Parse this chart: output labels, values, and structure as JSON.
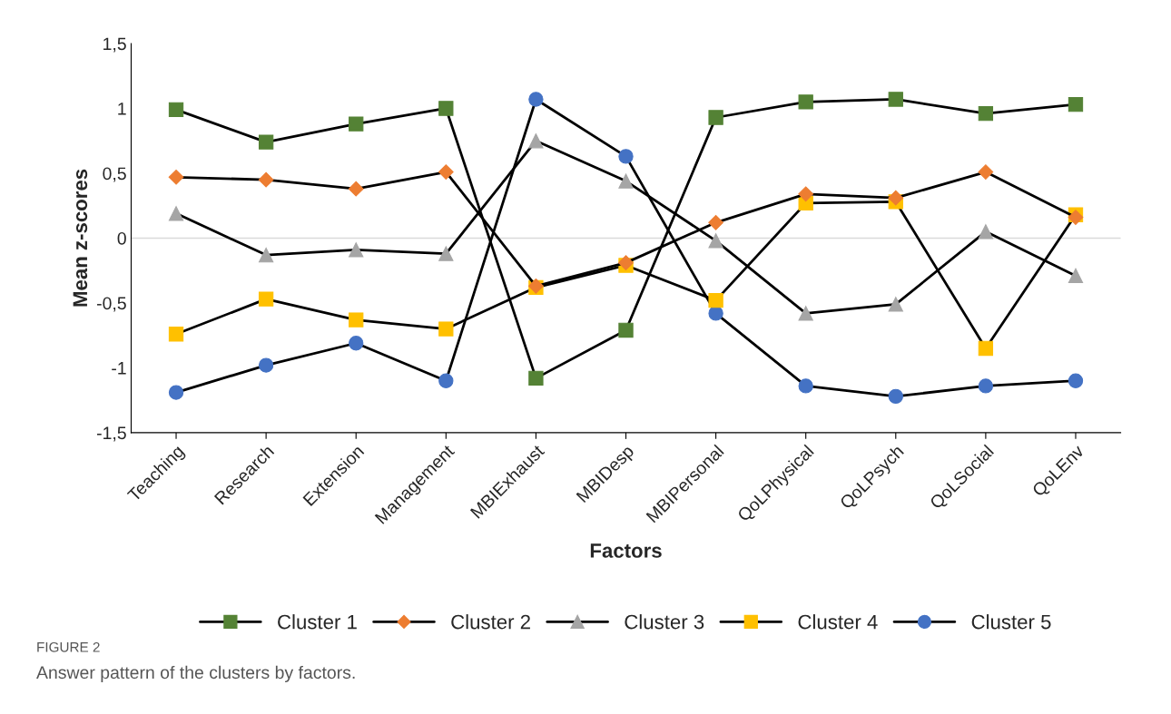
{
  "chart_data": {
    "type": "line",
    "xlabel": "Factors",
    "ylabel": "Mean z-scores",
    "categories": [
      "Teaching",
      "Research",
      "Extension",
      "Management",
      "MBIExhaust",
      "MBIDesp",
      "MBIPersonal",
      "QoLPhysical",
      "QoLPsych",
      "QoLSocial",
      "QoLEnv"
    ],
    "series": [
      {
        "name": "Cluster 1",
        "color": "#548235",
        "marker": "square",
        "values": [
          0.99,
          0.74,
          0.88,
          1.0,
          -1.08,
          -0.71,
          0.93,
          1.05,
          1.07,
          0.96,
          1.03
        ]
      },
      {
        "name": "Cluster 2",
        "color": "#ed7d31",
        "marker": "diamond",
        "values": [
          0.47,
          0.45,
          0.38,
          0.51,
          -0.37,
          -0.19,
          0.12,
          0.34,
          0.31,
          0.51,
          0.16
        ]
      },
      {
        "name": "Cluster 3",
        "color": "#a5a5a5",
        "marker": "triangle",
        "values": [
          0.19,
          -0.13,
          -0.09,
          -0.12,
          0.75,
          0.44,
          -0.02,
          -0.58,
          -0.51,
          0.05,
          -0.29
        ]
      },
      {
        "name": "Cluster 4",
        "color": "#ffc000",
        "marker": "square",
        "values": [
          -0.74,
          -0.47,
          -0.63,
          -0.7,
          -0.38,
          -0.21,
          -0.48,
          0.27,
          0.28,
          -0.85,
          0.18
        ]
      },
      {
        "name": "Cluster 5",
        "color": "#4472c4",
        "marker": "circle",
        "values": [
          -1.19,
          -0.98,
          -0.81,
          -1.1,
          1.07,
          0.63,
          -0.58,
          -1.14,
          -1.22,
          -1.14,
          -1.1
        ]
      }
    ],
    "ylim": [
      -1.5,
      1.5
    ],
    "yticks": [
      {
        "value": -1.5,
        "label": "-1,5"
      },
      {
        "value": -1,
        "label": "-1"
      },
      {
        "value": -0.5,
        "label": "-0,5"
      },
      {
        "value": 0,
        "label": "0"
      },
      {
        "value": 0.5,
        "label": "0,5"
      },
      {
        "value": 1,
        "label": "1"
      },
      {
        "value": 1.5,
        "label": "1,5"
      }
    ],
    "ref_lines": [
      {
        "axis": "y",
        "value": 0,
        "color": "#d9d9d9"
      }
    ],
    "grid": false,
    "legend": "bottom",
    "line_style": "solid",
    "annotations": [
      "FIGURE 2",
      "Answer pattern of the clusters by factors."
    ]
  }
}
